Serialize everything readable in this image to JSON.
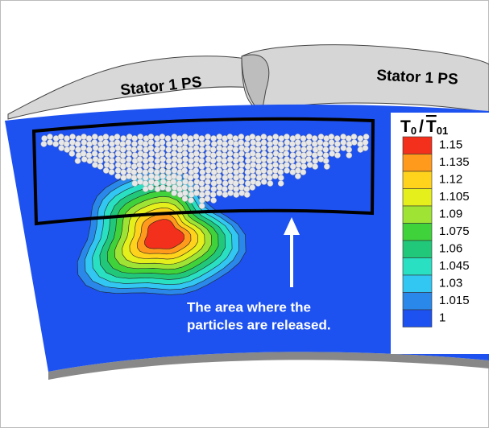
{
  "labels": {
    "stator_left": "Stator 1 PS",
    "stator_right": "Stator 1 PS",
    "annotation_line1": "The area where the",
    "annotation_line2": "particles are released."
  },
  "legend": {
    "title": {
      "symbol": "T",
      "sub1": "0",
      "separator": "/",
      "symbol2": "T",
      "sub2": "01"
    },
    "levels": [
      {
        "value": 1.15,
        "color": "#f2301c"
      },
      {
        "value": 1.135,
        "color": "#ff9a1c"
      },
      {
        "value": 1.12,
        "color": "#ffd21c"
      },
      {
        "value": 1.105,
        "color": "#e4ef1c"
      },
      {
        "value": 1.09,
        "color": "#9fe434"
      },
      {
        "value": 1.075,
        "color": "#3fd23a"
      },
      {
        "value": 1.06,
        "color": "#22c87a"
      },
      {
        "value": 1.045,
        "color": "#2ae0c2"
      },
      {
        "value": 1.03,
        "color": "#32c6f2"
      },
      {
        "value": 1.015,
        "color": "#2a88ea"
      },
      {
        "value": 1,
        "color": "#1e52f0"
      }
    ]
  }
}
